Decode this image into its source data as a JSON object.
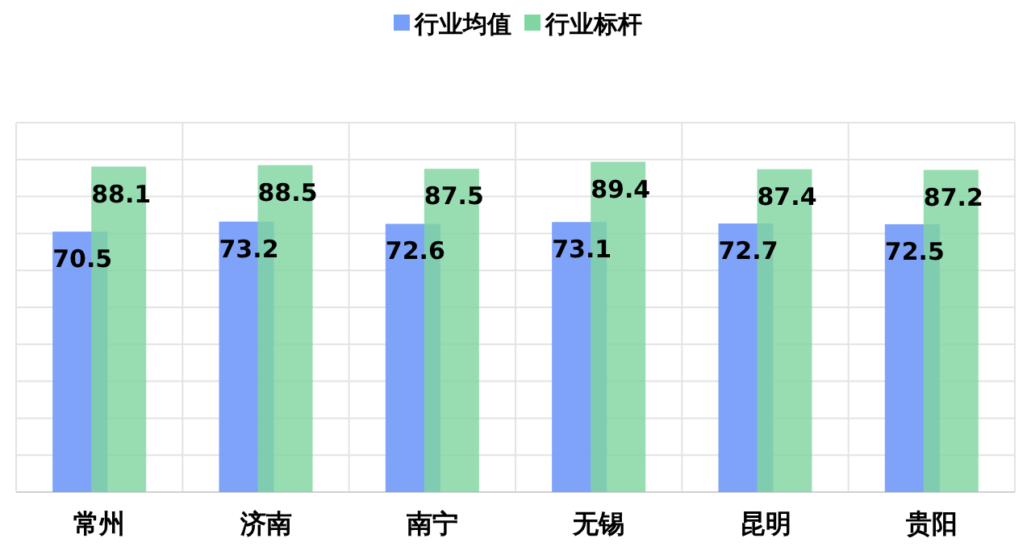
{
  "chart_data": {
    "type": "bar",
    "categories": [
      "常州",
      "济南",
      "南宁",
      "无锡",
      "昆明",
      "贵阳"
    ],
    "series": [
      {
        "name": "行业均值",
        "color": "#779ef9",
        "values": [
          70.5,
          73.2,
          72.6,
          73.1,
          72.7,
          72.5
        ]
      },
      {
        "name": "行业标杆",
        "color": "#80d6a0",
        "values": [
          88.1,
          88.5,
          87.5,
          89.4,
          87.4,
          87.2
        ]
      }
    ],
    "ylim": [
      0,
      100
    ],
    "yticks": [
      {
        "value": 0,
        "label": null
      },
      {
        "value": 10,
        "label": null
      },
      {
        "value": 20,
        "label": null
      },
      {
        "value": 30,
        "label": null
      },
      {
        "value": 40,
        "label": null
      },
      {
        "value": 50,
        "label": null
      },
      {
        "value": 60,
        "label": null
      },
      {
        "value": 70,
        "label": null
      },
      {
        "value": 80,
        "label": null
      },
      {
        "value": 90,
        "label": null
      },
      {
        "value": 100,
        "label": null
      }
    ],
    "tick_labels": "x",
    "grid": true,
    "legend": "top",
    "data_labels": true
  }
}
